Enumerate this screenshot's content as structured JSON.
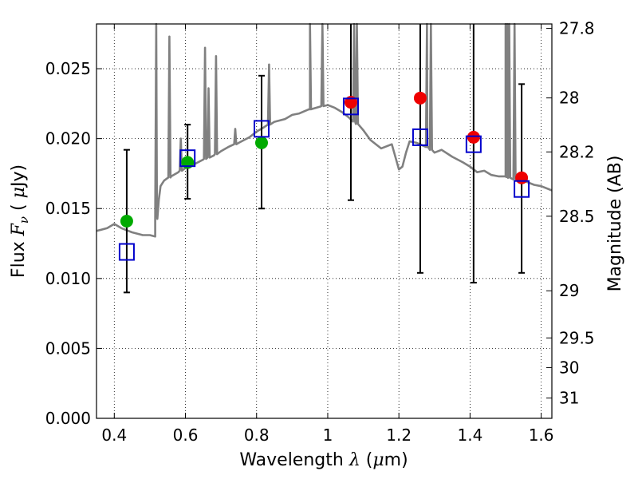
{
  "chart_data": {
    "type": "scatter",
    "xlabel": "Wavelength",
    "xlabel_symbol": "λ",
    "xlabel_unit_open": " (",
    "xlabel_unit_mu": "μ",
    "xlabel_unit_close": "m)",
    "ylabel": "Flux",
    "ylabel_symbol": "F",
    "ylabel_sub": "ν",
    "ylabel_unit_open": "(",
    "ylabel_unit_mu": "μ",
    "ylabel_unit_close": "Jy)",
    "y2label": "Magnitude (AB)",
    "xlim": [
      0.35,
      1.63
    ],
    "ylim": [
      0.0,
      0.0282
    ],
    "x_ticks": [
      0.4,
      0.6,
      0.8,
      1.0,
      1.2,
      1.4,
      1.6
    ],
    "x_tick_labels": [
      "0.4",
      "0.6",
      "0.8",
      "1",
      "1.2",
      "1.4",
      "1.6"
    ],
    "y_ticks": [
      0.0,
      0.005,
      0.01,
      0.015,
      0.02,
      0.025
    ],
    "y_tick_labels": [
      "0.000",
      "0.005",
      "0.010",
      "0.015",
      "0.020",
      "0.025"
    ],
    "y2_ticks": [
      {
        "label": "27.8",
        "flux": 0.02788
      },
      {
        "label": "28",
        "flux": 0.02291
      },
      {
        "label": "28.2",
        "flux": 0.01905
      },
      {
        "label": "28.5",
        "flux": 0.01445
      },
      {
        "label": "29",
        "flux": 0.00912
      },
      {
        "label": "29.5",
        "flux": 0.00575
      },
      {
        "label": "30",
        "flux": 0.00363
      },
      {
        "label": "31",
        "flux": 0.00145
      }
    ],
    "grid": true,
    "grid_style": "dotted",
    "series": [
      {
        "kind": "observed-flux-points",
        "color": "#00aa00",
        "marker": "circle",
        "points": [
          {
            "x": 0.435,
            "y": 0.0141,
            "err": [
              0.009,
              0.0192
            ]
          },
          {
            "x": 0.606,
            "y": 0.0183,
            "err": [
              0.0157,
              0.021
            ]
          },
          {
            "x": 0.814,
            "y": 0.0197,
            "err": [
              0.015,
              0.0245
            ]
          }
        ]
      },
      {
        "kind": "observed-flux-points",
        "color": "#ee0000",
        "marker": "circle",
        "points": [
          {
            "x": 1.065,
            "y": 0.0226,
            "err": [
              0.0156,
              0.03
            ]
          },
          {
            "x": 1.26,
            "y": 0.0229,
            "err": [
              0.0104,
              0.03
            ]
          },
          {
            "x": 1.41,
            "y": 0.0201,
            "err": [
              0.0097,
              0.03
            ]
          },
          {
            "x": 1.545,
            "y": 0.0172,
            "err": [
              0.0104,
              0.0239
            ]
          }
        ]
      },
      {
        "kind": "model-band-flux",
        "color": "#0000cc",
        "marker": "open-square",
        "points": [
          {
            "x": 0.435,
            "y": 0.0119
          },
          {
            "x": 0.606,
            "y": 0.0186
          },
          {
            "x": 0.814,
            "y": 0.0207
          },
          {
            "x": 1.065,
            "y": 0.0223
          },
          {
            "x": 1.26,
            "y": 0.0201
          },
          {
            "x": 1.41,
            "y": 0.0196
          },
          {
            "x": 1.545,
            "y": 0.0164
          }
        ]
      },
      {
        "kind": "model-spectrum",
        "color": "#808080",
        "marker": "line",
        "x": [
          0.35,
          0.38,
          0.4,
          0.42,
          0.45,
          0.48,
          0.5,
          0.515,
          0.52,
          0.525,
          0.53,
          0.535,
          0.54,
          0.56,
          0.58,
          0.6,
          0.62,
          0.65,
          0.68,
          0.7,
          0.72,
          0.75,
          0.78,
          0.8,
          0.82,
          0.85,
          0.88,
          0.9,
          0.92,
          0.95,
          0.98,
          1.0,
          1.02,
          1.04,
          1.06,
          1.08,
          1.1,
          1.12,
          1.15,
          1.18,
          1.2,
          1.21,
          1.22,
          1.23,
          1.25,
          1.28,
          1.3,
          1.32,
          1.35,
          1.38,
          1.4,
          1.42,
          1.44,
          1.46,
          1.48,
          1.5,
          1.52,
          1.55,
          1.58,
          1.6,
          1.63
        ],
        "y": [
          0.0134,
          0.0136,
          0.0139,
          0.0136,
          0.0133,
          0.0131,
          0.0131,
          0.013,
          0.0151,
          0.0156,
          0.0166,
          0.0168,
          0.017,
          0.0173,
          0.0176,
          0.0179,
          0.0181,
          0.0185,
          0.0188,
          0.0191,
          0.0194,
          0.0197,
          0.0201,
          0.0205,
          0.0208,
          0.0212,
          0.0214,
          0.0217,
          0.0218,
          0.0221,
          0.0223,
          0.0224,
          0.0222,
          0.0219,
          0.0215,
          0.0211,
          0.0206,
          0.0199,
          0.0193,
          0.0196,
          0.0178,
          0.018,
          0.019,
          0.0198,
          0.0197,
          0.0194,
          0.019,
          0.0192,
          0.0187,
          0.0183,
          0.018,
          0.0176,
          0.0177,
          0.0174,
          0.0173,
          0.0173,
          0.0171,
          0.017,
          0.0167,
          0.0166,
          0.0163
        ]
      }
    ],
    "emission_spikes": [
      {
        "x": 0.518,
        "peak": 0.0282
      },
      {
        "x": 0.555,
        "peak": 0.0273
      },
      {
        "x": 0.587,
        "peak": 0.02
      },
      {
        "x": 0.655,
        "peak": 0.0265
      },
      {
        "x": 0.665,
        "peak": 0.0236
      },
      {
        "x": 0.686,
        "peak": 0.0259
      },
      {
        "x": 0.74,
        "peak": 0.0207
      },
      {
        "x": 0.835,
        "peak": 0.0253
      },
      {
        "x": 0.95,
        "peak": 0.0282
      },
      {
        "x": 0.985,
        "peak": 0.0282
      },
      {
        "x": 1.074,
        "peak": 0.0282
      },
      {
        "x": 1.082,
        "peak": 0.0282
      },
      {
        "x": 1.279,
        "peak": 0.0282
      },
      {
        "x": 1.29,
        "peak": 0.0282
      },
      {
        "x": 1.5,
        "peak": 0.0282
      },
      {
        "x": 1.505,
        "peak": 0.0282
      },
      {
        "x": 1.51,
        "peak": 0.0282
      },
      {
        "x": 1.525,
        "peak": 0.0282
      }
    ]
  }
}
